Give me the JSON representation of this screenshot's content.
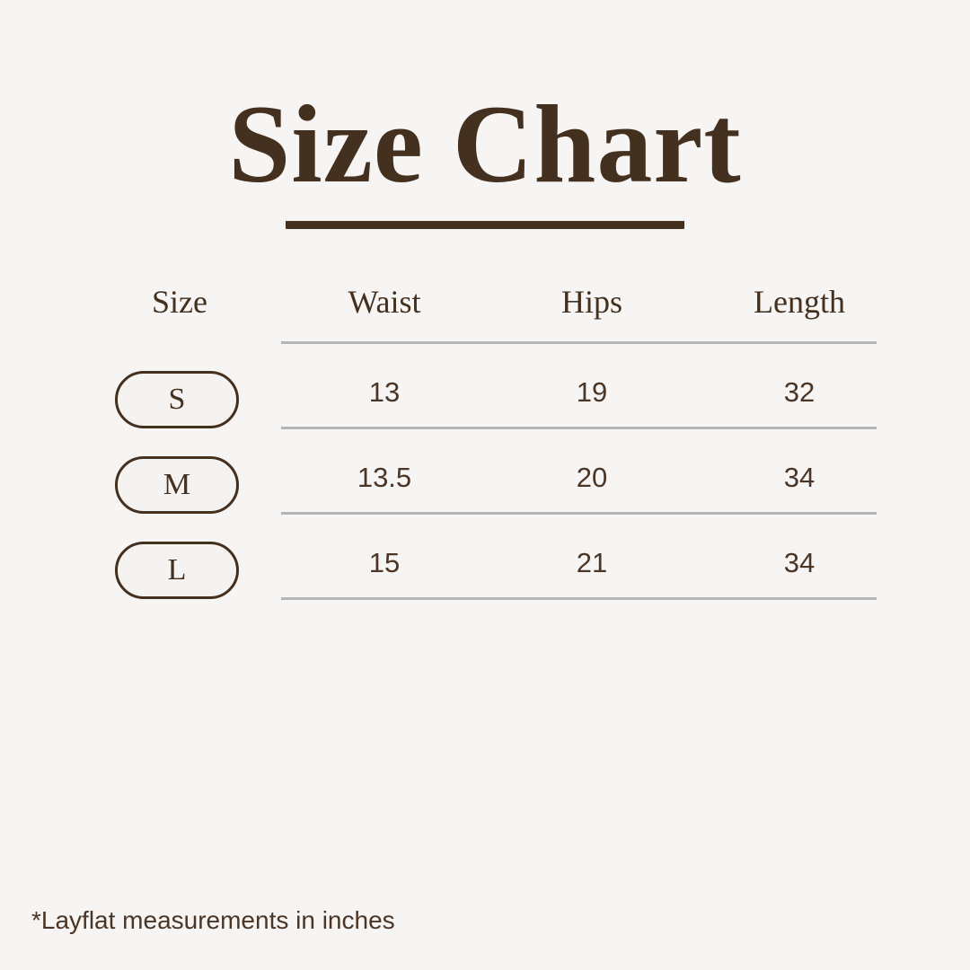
{
  "colors": {
    "background": "#f6f5f3",
    "brown": "#44301f",
    "divider_gray": "#b5b5b5",
    "badge_fill": "#f4f3f1"
  },
  "chart_data": {
    "type": "table",
    "title": "Size Chart",
    "columns": [
      "Size",
      "Waist",
      "Hips",
      "Length"
    ],
    "rows": [
      [
        "S",
        13,
        19,
        32
      ],
      [
        "M",
        13.5,
        20,
        34
      ],
      [
        "L",
        15,
        21,
        34
      ]
    ],
    "footnote": "*Layflat measurements in inches"
  }
}
